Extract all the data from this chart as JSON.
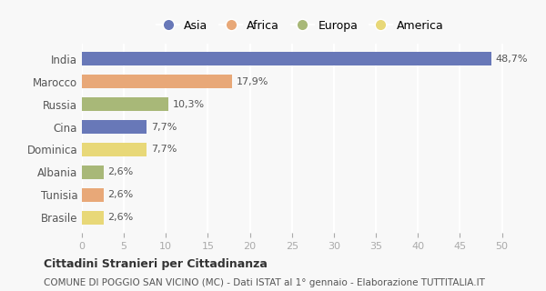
{
  "countries": [
    "India",
    "Marocco",
    "Russia",
    "Cina",
    "Dominica",
    "Albania",
    "Tunisia",
    "Brasile"
  ],
  "values": [
    48.7,
    17.9,
    10.3,
    7.7,
    7.7,
    2.6,
    2.6,
    2.6
  ],
  "labels": [
    "48,7%",
    "17,9%",
    "10,3%",
    "7,7%",
    "7,7%",
    "2,6%",
    "2,6%",
    "2,6%"
  ],
  "colors": [
    "#6878b8",
    "#e8a878",
    "#a8b878",
    "#6878b8",
    "#e8d878",
    "#a8b878",
    "#e8a878",
    "#e8d878"
  ],
  "legend": [
    {
      "label": "Asia",
      "color": "#6878b8"
    },
    {
      "label": "Africa",
      "color": "#e8a878"
    },
    {
      "label": "Europa",
      "color": "#a8b878"
    },
    {
      "label": "America",
      "color": "#e8d878"
    }
  ],
  "xlim": [
    0,
    52
  ],
  "xticks": [
    0,
    5,
    10,
    15,
    20,
    25,
    30,
    35,
    40,
    45,
    50
  ],
  "title_bold": "Cittadini Stranieri per Cittadinanza",
  "title_sub": "COMUNE DI POGGIO SAN VICINO (MC) - Dati ISTAT al 1° gennaio - Elaborazione TUTTITALIA.IT",
  "background_color": "#f8f8f8",
  "grid_color": "#ffffff"
}
